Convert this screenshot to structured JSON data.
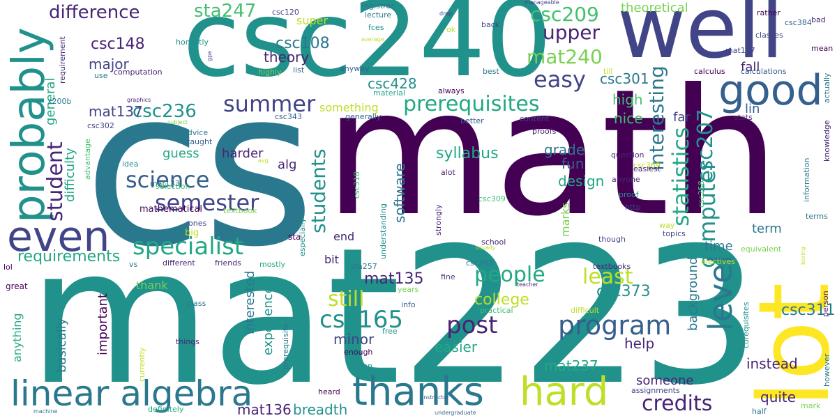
{
  "words": [
    "csc240",
    "cs",
    "math",
    "mat223",
    "well",
    "lot",
    "probably",
    "even",
    "good",
    "hard",
    "thanks",
    "linear algebra",
    "specialist",
    "level",
    "program",
    "post",
    "csc165",
    "science",
    "semester",
    "summer",
    "prerequisites",
    "computer",
    "statistics",
    "csc207",
    "student",
    "students",
    "people",
    "least",
    "still",
    "credits",
    "mat240",
    "upper",
    "easy",
    "interesting",
    "csc209",
    "difference",
    "sta247",
    "csc236",
    "csc148",
    "csc108",
    "csc428",
    "mat137",
    "mat135",
    "mat136",
    "breadth",
    "mat237",
    "requirements",
    "major",
    "theory",
    "college",
    "syllabus",
    "software",
    "csc373",
    "csc311",
    "csc301",
    "grade",
    "fun",
    "design",
    "help",
    "instead",
    "someone",
    "quite",
    "minor",
    "easier",
    "experience",
    "important",
    "basically",
    "interested",
    "general",
    "difficulty",
    "harder",
    "alg",
    "guess",
    "nice",
    "high",
    "far",
    "lin",
    "fall",
    "term",
    "time",
    "marks",
    "background",
    "bit",
    "end",
    "theoretical",
    "super",
    "something",
    "thank",
    "anything",
    "csc302",
    "mat133",
    "mathematical",
    "textbook",
    "ones",
    "big",
    "lol",
    "great",
    "vs",
    "different",
    "friends",
    "mostly",
    "sta",
    "school",
    "sta257",
    "csc263",
    "fine",
    "years",
    "info",
    "practical",
    "difficult",
    "textbooks",
    "electives",
    "equivalent",
    "topics",
    "though",
    "way",
    "http",
    "proof",
    "csc309",
    "csc258",
    "csc369",
    "anyone",
    "easiest",
    "question",
    "proofs",
    "content",
    "better",
    "generally",
    "csc343",
    "csc318",
    "especially",
    "strongly",
    "alot",
    "understanding",
    "usually",
    "class",
    "things",
    "currently",
    "definitely",
    "machine",
    "free",
    "prerequisite",
    "enough",
    "khan",
    "heard",
    "assignments",
    "instructor",
    "undergraduate",
    "half",
    "mark",
    "however",
    "corequisites",
    "person",
    "boring",
    "teacher",
    "advice",
    "taught",
    "advantage",
    "selection",
    "idea",
    "avg",
    "subject",
    "graphics",
    "x200b",
    "requirement",
    "use",
    "computation",
    "highly",
    "list",
    "anyway",
    "best",
    "always",
    "material",
    "calculus",
    "calculations",
    "mat157",
    "actually",
    "stats",
    "knowledge",
    "information",
    "terms",
    "csc384",
    "classes",
    "rather",
    "mean",
    "bad",
    "till",
    "registrar",
    "lecture",
    "fces",
    "average",
    "ok",
    "drop",
    "back",
    "manageable",
    "csc120",
    "honestly",
    "gpa"
  ]
}
